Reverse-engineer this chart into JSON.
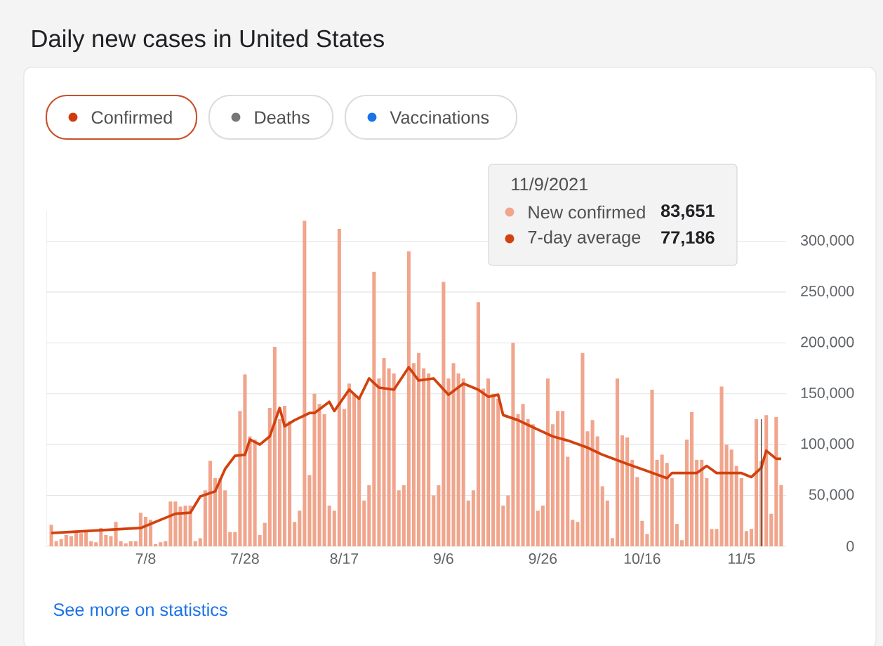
{
  "chart_data": {
    "type": "bar",
    "title": "Daily new cases in United States",
    "xlim": [
      "2021-06-18",
      "2021-11-14"
    ],
    "xticks": [
      {
        "value": "2021-07-08",
        "label": "7/8"
      },
      {
        "value": "2021-07-28",
        "label": "7/28"
      },
      {
        "value": "2021-08-17",
        "label": "8/17"
      },
      {
        "value": "2021-09-06",
        "label": "9/6"
      },
      {
        "value": "2021-09-26",
        "label": "9/26"
      },
      {
        "value": "2021-10-16",
        "label": "10/16"
      },
      {
        "value": "2021-11-05",
        "label": "11/5"
      }
    ],
    "ylim": [
      0,
      330000
    ],
    "yticks": [
      0,
      {
        "value": 50000,
        "label": "50,000"
      },
      {
        "value": 100000,
        "label": "100,000"
      },
      {
        "value": 150000,
        "label": "150,000"
      },
      {
        "value": 200000,
        "label": "200,000"
      },
      {
        "value": 250000,
        "label": "250,000"
      },
      {
        "value": 300000,
        "label": "300,000"
      }
    ],
    "grid": "y",
    "legend": "top",
    "series": [
      {
        "name": "New confirmed",
        "color": "#f0a58c",
        "x": [
          "2021-06-19",
          "2021-06-20",
          "2021-06-21",
          "2021-06-22",
          "2021-06-23",
          "2021-06-24",
          "2021-06-25",
          "2021-06-26",
          "2021-06-27",
          "2021-06-28",
          "2021-06-29",
          "2021-06-30",
          "2021-07-01",
          "2021-07-02",
          "2021-07-03",
          "2021-07-04",
          "2021-07-05",
          "2021-07-06",
          "2021-07-07",
          "2021-07-08",
          "2021-07-09",
          "2021-07-10",
          "2021-07-11",
          "2021-07-12",
          "2021-07-13",
          "2021-07-14",
          "2021-07-15",
          "2021-07-16",
          "2021-07-17",
          "2021-07-18",
          "2021-07-19",
          "2021-07-20",
          "2021-07-21",
          "2021-07-22",
          "2021-07-23",
          "2021-07-24",
          "2021-07-25",
          "2021-07-26",
          "2021-07-27",
          "2021-07-28",
          "2021-07-29",
          "2021-07-30",
          "2021-07-31",
          "2021-08-01",
          "2021-08-02",
          "2021-08-03",
          "2021-08-04",
          "2021-08-05",
          "2021-08-06",
          "2021-08-07",
          "2021-08-08",
          "2021-08-09",
          "2021-08-10",
          "2021-08-11",
          "2021-08-12",
          "2021-08-13",
          "2021-08-14",
          "2021-08-15",
          "2021-08-16",
          "2021-08-17",
          "2021-08-18",
          "2021-08-19",
          "2021-08-20",
          "2021-08-21",
          "2021-08-22",
          "2021-08-23",
          "2021-08-24",
          "2021-08-25",
          "2021-08-26",
          "2021-08-27",
          "2021-08-28",
          "2021-08-29",
          "2021-08-30",
          "2021-08-31",
          "2021-09-01",
          "2021-09-02",
          "2021-09-03",
          "2021-09-04",
          "2021-09-05",
          "2021-09-06",
          "2021-09-07",
          "2021-09-08",
          "2021-09-09",
          "2021-09-10",
          "2021-09-11",
          "2021-09-12",
          "2021-09-13",
          "2021-09-14",
          "2021-09-15",
          "2021-09-16",
          "2021-09-17",
          "2021-09-18",
          "2021-09-19",
          "2021-09-20",
          "2021-09-21",
          "2021-09-22",
          "2021-09-23",
          "2021-09-24",
          "2021-09-25",
          "2021-09-26",
          "2021-09-27",
          "2021-09-28",
          "2021-09-29",
          "2021-09-30",
          "2021-10-01",
          "2021-10-02",
          "2021-10-03",
          "2021-10-04",
          "2021-10-05",
          "2021-10-06",
          "2021-10-07",
          "2021-10-08",
          "2021-10-09",
          "2021-10-10",
          "2021-10-11",
          "2021-10-12",
          "2021-10-13",
          "2021-10-14",
          "2021-10-15",
          "2021-10-16",
          "2021-10-17",
          "2021-10-18",
          "2021-10-19",
          "2021-10-20",
          "2021-10-21",
          "2021-10-22",
          "2021-10-23",
          "2021-10-24",
          "2021-10-25",
          "2021-10-26",
          "2021-10-27",
          "2021-10-28",
          "2021-10-29",
          "2021-10-30",
          "2021-10-31",
          "2021-11-01",
          "2021-11-02",
          "2021-11-03",
          "2021-11-04",
          "2021-11-05",
          "2021-11-06",
          "2021-11-07",
          "2021-11-08",
          "2021-11-09",
          "2021-11-10",
          "2021-11-11",
          "2021-11-12",
          "2021-11-13"
        ],
        "values": [
          21000,
          5000,
          7000,
          11000,
          10000,
          14000,
          13000,
          15000,
          5000,
          4000,
          18000,
          11000,
          10000,
          24000,
          5000,
          3000,
          5000,
          5000,
          33000,
          29000,
          26000,
          2000,
          4000,
          5000,
          44000,
          44000,
          39000,
          40000,
          40000,
          5000,
          8000,
          55000,
          84000,
          67000,
          67000,
          55000,
          14000,
          14000,
          133000,
          169000,
          108000,
          105000,
          11000,
          23000,
          136000,
          196000,
          125000,
          138000,
          123000,
          24000,
          35000,
          320000,
          70000,
          150000,
          140000,
          130000,
          40000,
          35000,
          312000,
          135000,
          160000,
          150000,
          145000,
          45000,
          60000,
          270000,
          165000,
          185000,
          175000,
          170000,
          55000,
          60000,
          290000,
          180000,
          190000,
          175000,
          170000,
          50000,
          60000,
          260000,
          165000,
          180000,
          170000,
          165000,
          45000,
          55000,
          240000,
          155000,
          165000,
          150000,
          145000,
          40000,
          50000,
          200000,
          130000,
          140000,
          125000,
          120000,
          35000,
          40000,
          165000,
          120000,
          133000,
          133000,
          88000,
          26000,
          24000,
          190000,
          113000,
          124000,
          108000,
          59000,
          45000,
          8000,
          165000,
          109000,
          107000,
          85000,
          68000,
          25000,
          12000,
          154000,
          85000,
          90000,
          82000,
          67000,
          22000,
          6000,
          105000,
          132000,
          85000,
          85000,
          67000,
          17000,
          17000,
          157000,
          100000,
          95000,
          79000,
          67000,
          15000,
          17000,
          125000,
          83651,
          129000,
          32000,
          127000,
          60000
        ]
      },
      {
        "name": "7-day average",
        "type": "line",
        "color": "#d2410f",
        "x": [
          "2021-06-19",
          "2021-07-07",
          "2021-07-14",
          "2021-07-17",
          "2021-07-19",
          "2021-07-22",
          "2021-07-24",
          "2021-07-26",
          "2021-07-28",
          "2021-07-29",
          "2021-07-31",
          "2021-08-02",
          "2021-08-04",
          "2021-08-05",
          "2021-08-07",
          "2021-08-10",
          "2021-08-11",
          "2021-08-14",
          "2021-08-15",
          "2021-08-18",
          "2021-08-20",
          "2021-08-22",
          "2021-08-24",
          "2021-08-27",
          "2021-08-30",
          "2021-09-01",
          "2021-09-04",
          "2021-09-07",
          "2021-09-10",
          "2021-09-13",
          "2021-09-15",
          "2021-09-17",
          "2021-09-18",
          "2021-09-21",
          "2021-09-24",
          "2021-09-28",
          "2021-10-01",
          "2021-10-05",
          "2021-10-08",
          "2021-10-13",
          "2021-10-17",
          "2021-10-21",
          "2021-10-22",
          "2021-10-27",
          "2021-10-29",
          "2021-10-31",
          "2021-11-05",
          "2021-11-07",
          "2021-11-09",
          "2021-11-10",
          "2021-11-12",
          "2021-11-13"
        ],
        "values": [
          13000,
          18000,
          32000,
          33000,
          49000,
          54000,
          76000,
          89000,
          90000,
          105000,
          100000,
          108000,
          136000,
          118000,
          124000,
          131000,
          131000,
          142000,
          133000,
          154000,
          145000,
          165000,
          156000,
          154000,
          176000,
          163000,
          165000,
          149000,
          160000,
          154000,
          147000,
          149000,
          129000,
          124000,
          117000,
          108000,
          104000,
          97000,
          90000,
          81000,
          74000,
          67000,
          72000,
          72000,
          79000,
          72000,
          72000,
          68000,
          77186,
          94000,
          86000,
          86000
        ]
      }
    ],
    "ref_lines": [
      {
        "axis": "x",
        "value": "2021-11-09",
        "color": "#444444"
      }
    ],
    "annotations": [
      "Confirmed",
      "Deaths",
      "Vaccinations",
      "11/9/2021",
      "83,651",
      "77,186",
      "See more on statistics"
    ]
  }
}
